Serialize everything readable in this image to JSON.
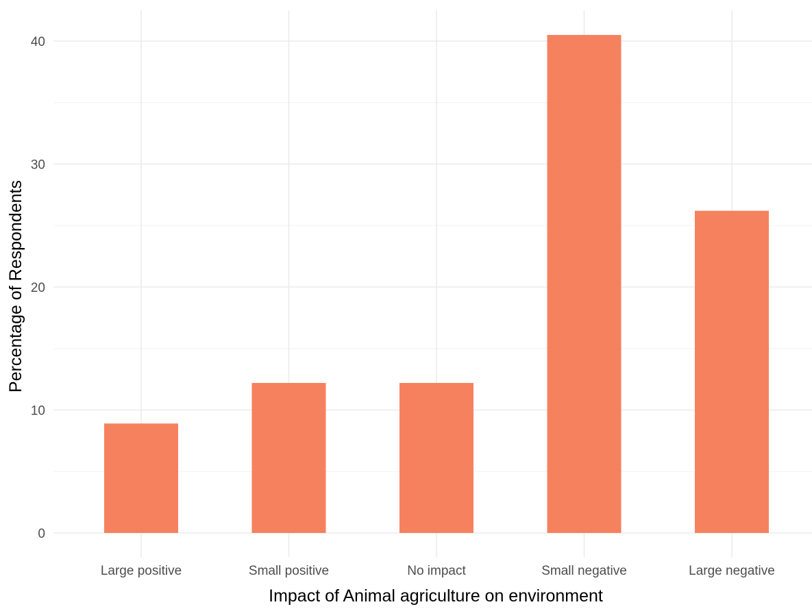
{
  "chart_data": {
    "type": "bar",
    "categories": [
      "Large positive",
      "Small positive",
      "No impact",
      "Small negative",
      "Large negative"
    ],
    "values": [
      8.9,
      12.2,
      12.2,
      40.5,
      26.2
    ],
    "title": "",
    "xlabel": "Impact of Animal agriculture on environment",
    "ylabel": "Percentage of Respondents",
    "ylim": [
      0,
      42.1
    ],
    "yticks": [
      0,
      10,
      20,
      30,
      40
    ],
    "grid": true,
    "bar_color": "#F6815F",
    "grid_color": "#EBEBEB"
  }
}
